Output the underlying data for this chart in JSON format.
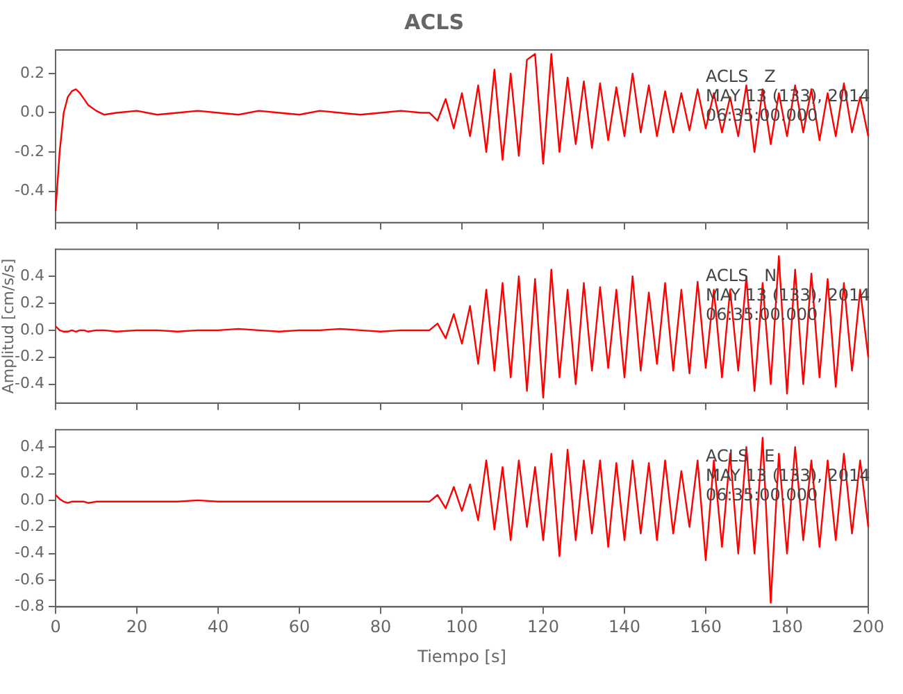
{
  "chart_data": [
    {
      "type": "line",
      "title": "ACLS",
      "annotations": [
        "ACLS   Z",
        "MAY 13 (133), 2014",
        "06:35:00.000"
      ],
      "x": [
        0,
        1,
        2,
        3,
        4,
        5,
        6,
        7,
        8,
        10,
        12,
        15,
        20,
        25,
        30,
        35,
        40,
        45,
        50,
        55,
        60,
        65,
        70,
        75,
        80,
        85,
        90,
        92,
        94,
        96,
        98,
        100,
        102,
        104,
        106,
        108,
        110,
        112,
        114,
        116,
        118,
        120,
        122,
        124,
        126,
        128,
        130,
        132,
        134,
        136,
        138,
        140,
        142,
        144,
        146,
        148,
        150,
        152,
        154,
        156,
        158,
        160,
        162,
        164,
        166,
        168,
        170,
        172,
        174,
        176,
        178,
        180,
        182,
        184,
        186,
        188,
        190,
        192,
        194,
        196,
        198,
        200
      ],
      "series": [
        {
          "color": "#ff0000",
          "values": [
            -0.5,
            -0.2,
            0.0,
            0.08,
            0.11,
            0.12,
            0.1,
            0.07,
            0.04,
            0.01,
            -0.01,
            0.0,
            0.01,
            -0.01,
            0.0,
            0.01,
            0.0,
            -0.01,
            0.01,
            0.0,
            -0.01,
            0.01,
            0.0,
            -0.01,
            0.0,
            0.01,
            0.0,
            0.0,
            -0.04,
            0.07,
            -0.08,
            0.1,
            -0.12,
            0.14,
            -0.2,
            0.22,
            -0.24,
            0.2,
            -0.22,
            0.27,
            0.3,
            -0.26,
            0.3,
            -0.2,
            0.18,
            -0.16,
            0.16,
            -0.18,
            0.15,
            -0.14,
            0.13,
            -0.12,
            0.2,
            -0.1,
            0.14,
            -0.12,
            0.11,
            -0.1,
            0.1,
            -0.09,
            0.12,
            -0.08,
            0.1,
            -0.1,
            0.08,
            -0.12,
            0.14,
            -0.2,
            0.12,
            -0.16,
            0.1,
            -0.12,
            0.14,
            -0.1,
            0.12,
            -0.14,
            0.1,
            -0.12,
            0.15,
            -0.1,
            0.08,
            -0.12
          ]
        }
      ],
      "xlim": [
        0,
        200
      ],
      "xticks": [
        0,
        20,
        40,
        60,
        80,
        100,
        120,
        140,
        160,
        180,
        200
      ],
      "ylim": [
        -0.56,
        0.32
      ],
      "yticks": [
        {
          "value": -0.4,
          "label": "-0.4"
        },
        {
          "value": -0.2,
          "label": "-0.2"
        },
        {
          "value": 0,
          "label": "0.0"
        },
        {
          "value": 0.2,
          "label": "0.2"
        }
      ],
      "tick_labels": "y",
      "grid": false,
      "legend": false,
      "marker": "none",
      "line_style": "solid"
    },
    {
      "type": "line",
      "ylabel": "Amplitud [cm/s/s]",
      "annotations": [
        "ACLS   N",
        "MAY 13 (133), 2014",
        "06:35:00.000"
      ],
      "x": [
        0,
        1,
        2,
        3,
        4,
        5,
        6,
        7,
        8,
        10,
        12,
        15,
        20,
        25,
        30,
        35,
        40,
        45,
        50,
        55,
        60,
        65,
        70,
        75,
        80,
        85,
        90,
        92,
        94,
        96,
        98,
        100,
        102,
        104,
        106,
        108,
        110,
        112,
        114,
        116,
        118,
        120,
        122,
        124,
        126,
        128,
        130,
        132,
        134,
        136,
        138,
        140,
        142,
        144,
        146,
        148,
        150,
        152,
        154,
        156,
        158,
        160,
        162,
        164,
        166,
        168,
        170,
        172,
        174,
        176,
        178,
        180,
        182,
        184,
        186,
        188,
        190,
        192,
        194,
        196,
        198,
        200
      ],
      "series": [
        {
          "color": "#ff0000",
          "values": [
            0.03,
            0.0,
            -0.01,
            -0.01,
            0.0,
            -0.01,
            0.0,
            0.0,
            -0.01,
            0.0,
            0.0,
            -0.01,
            0.0,
            0.0,
            -0.01,
            0.0,
            0.0,
            0.01,
            0.0,
            -0.01,
            0.0,
            0.0,
            0.01,
            0.0,
            -0.01,
            0.0,
            0.0,
            0.0,
            0.05,
            -0.06,
            0.12,
            -0.1,
            0.18,
            -0.25,
            0.3,
            -0.3,
            0.35,
            -0.35,
            0.4,
            -0.45,
            0.38,
            -0.5,
            0.45,
            -0.35,
            0.3,
            -0.4,
            0.35,
            -0.3,
            0.32,
            -0.28,
            0.3,
            -0.35,
            0.4,
            -0.3,
            0.28,
            -0.25,
            0.35,
            -0.3,
            0.3,
            -0.32,
            0.36,
            -0.28,
            0.3,
            -0.35,
            0.3,
            -0.3,
            0.4,
            -0.45,
            0.35,
            -0.4,
            0.55,
            -0.47,
            0.45,
            -0.4,
            0.42,
            -0.35,
            0.38,
            -0.42,
            0.35,
            -0.3,
            0.3,
            -0.2
          ]
        }
      ],
      "xlim": [
        0,
        200
      ],
      "xticks": [
        0,
        20,
        40,
        60,
        80,
        100,
        120,
        140,
        160,
        180,
        200
      ],
      "ylim": [
        -0.54,
        0.6
      ],
      "yticks": [
        {
          "value": -0.4,
          "label": "-0.4"
        },
        {
          "value": -0.2,
          "label": "-0.2"
        },
        {
          "value": 0,
          "label": "0.0"
        },
        {
          "value": 0.2,
          "label": "0.2"
        },
        {
          "value": 0.4,
          "label": "0.4"
        }
      ],
      "tick_labels": "y",
      "grid": false,
      "legend": false,
      "marker": "none",
      "line_style": "solid"
    },
    {
      "type": "line",
      "xlabel": "Tiempo [s]",
      "annotations": [
        "ACLS   E",
        "MAY 13 (133), 2014",
        "06:35:00.000"
      ],
      "x": [
        0,
        1,
        2,
        3,
        4,
        5,
        6,
        7,
        8,
        10,
        12,
        15,
        20,
        25,
        30,
        35,
        40,
        45,
        50,
        55,
        60,
        65,
        70,
        75,
        80,
        85,
        90,
        92,
        94,
        96,
        98,
        100,
        102,
        104,
        106,
        108,
        110,
        112,
        114,
        116,
        118,
        120,
        122,
        124,
        126,
        128,
        130,
        132,
        134,
        136,
        138,
        140,
        142,
        144,
        146,
        148,
        150,
        152,
        154,
        156,
        158,
        160,
        162,
        164,
        166,
        168,
        170,
        172,
        174,
        176,
        178,
        180,
        182,
        184,
        186,
        188,
        190,
        192,
        194,
        196,
        198,
        200
      ],
      "series": [
        {
          "color": "#ff0000",
          "values": [
            0.04,
            0.01,
            -0.01,
            -0.02,
            -0.01,
            -0.01,
            -0.01,
            -0.01,
            -0.02,
            -0.01,
            -0.01,
            -0.01,
            -0.01,
            -0.01,
            -0.01,
            0.0,
            -0.01,
            -0.01,
            -0.01,
            -0.01,
            -0.01,
            -0.01,
            -0.01,
            -0.01,
            -0.01,
            -0.01,
            -0.01,
            -0.01,
            0.04,
            -0.06,
            0.1,
            -0.08,
            0.12,
            -0.15,
            0.3,
            -0.22,
            0.25,
            -0.3,
            0.3,
            -0.2,
            0.25,
            -0.3,
            0.35,
            -0.42,
            0.38,
            -0.3,
            0.3,
            -0.25,
            0.3,
            -0.35,
            0.28,
            -0.3,
            0.3,
            -0.25,
            0.28,
            -0.3,
            0.3,
            -0.25,
            0.22,
            -0.2,
            0.3,
            -0.45,
            0.3,
            -0.35,
            0.35,
            -0.4,
            0.4,
            -0.4,
            0.47,
            -0.77,
            0.35,
            -0.4,
            0.4,
            -0.3,
            0.3,
            -0.35,
            0.3,
            -0.3,
            0.35,
            -0.25,
            0.3,
            -0.2
          ]
        }
      ],
      "xlim": [
        0,
        200
      ],
      "xticks": [
        0,
        20,
        40,
        60,
        80,
        100,
        120,
        140,
        160,
        180,
        200
      ],
      "ylim": [
        -0.8,
        0.53
      ],
      "yticks": [
        {
          "value": -0.8,
          "label": "-0.8"
        },
        {
          "value": -0.6,
          "label": "-0.6"
        },
        {
          "value": -0.4,
          "label": "-0.4"
        },
        {
          "value": -0.2,
          "label": "-0.2"
        },
        {
          "value": 0,
          "label": "0.0"
        },
        {
          "value": 0.2,
          "label": "0.2"
        },
        {
          "value": 0.4,
          "label": "0.4"
        }
      ],
      "grid": false,
      "legend": false,
      "marker": "none",
      "line_style": "solid"
    }
  ]
}
